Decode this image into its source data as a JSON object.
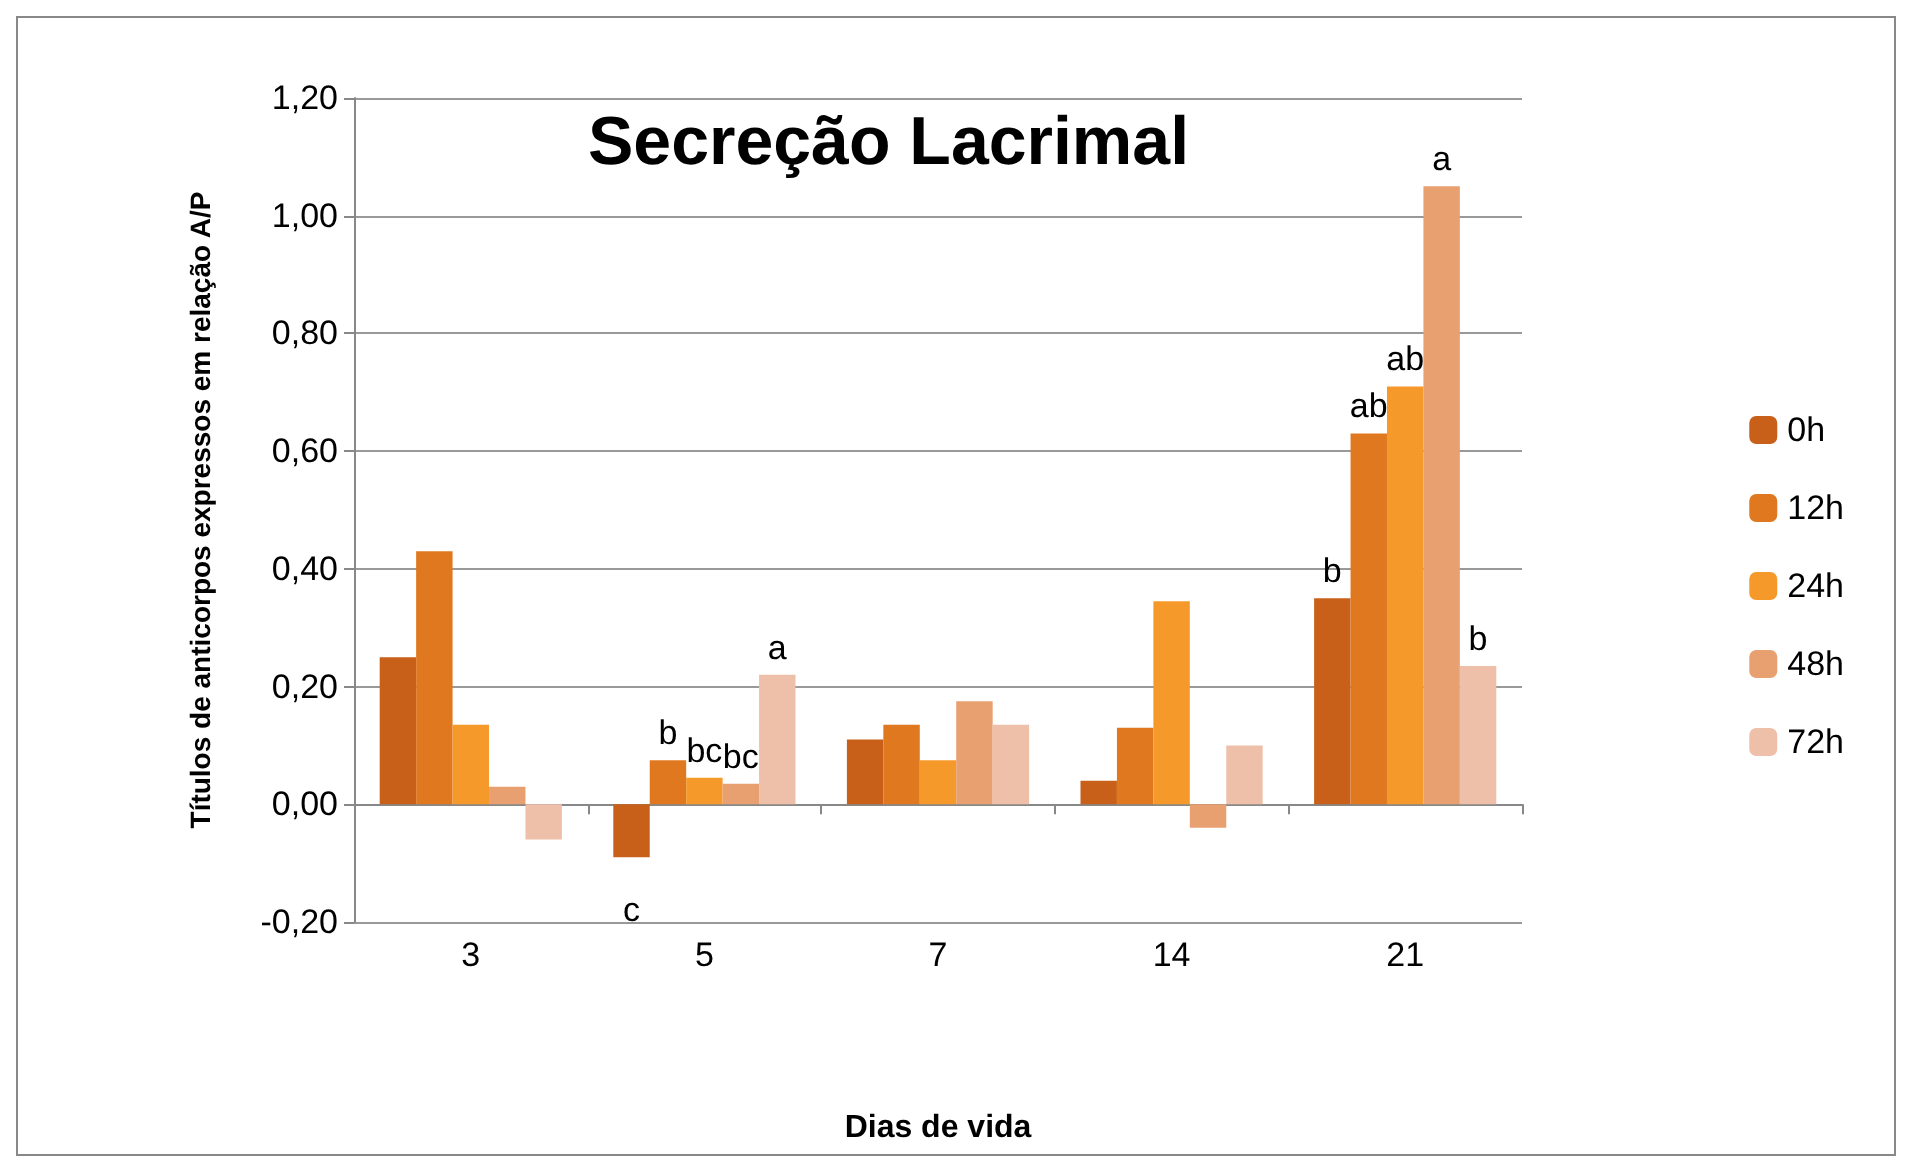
{
  "chart_data": {
    "type": "bar",
    "title": "Secreção Lacrimal",
    "xlabel": "Dias de vida",
    "ylabel": "Títulos de anticorpos expressos em relação A/P",
    "categories": [
      "3",
      "5",
      "7",
      "14",
      "21"
    ],
    "series": [
      {
        "name": "0h",
        "color": "#c8601a",
        "values": [
          0.25,
          -0.09,
          0.11,
          0.04,
          0.35
        ],
        "value_labels": [
          null,
          "c",
          null,
          null,
          "b"
        ]
      },
      {
        "name": "12h",
        "color": "#e07820",
        "values": [
          0.43,
          0.075,
          0.135,
          0.13,
          0.63
        ],
        "value_labels": [
          null,
          "b",
          null,
          null,
          "ab"
        ]
      },
      {
        "name": "24h",
        "color": "#f59a2a",
        "values": [
          0.135,
          0.045,
          0.075,
          0.345,
          0.71
        ],
        "value_labels": [
          null,
          "bc",
          null,
          null,
          "ab"
        ]
      },
      {
        "name": "48h",
        "color": "#e8a070",
        "values": [
          0.03,
          0.035,
          0.175,
          -0.04,
          1.05
        ],
        "value_labels": [
          null,
          "bc",
          null,
          null,
          "a"
        ]
      },
      {
        "name": "72h",
        "color": "#eec0aa",
        "values": [
          -0.06,
          0.22,
          0.135,
          0.1,
          0.235
        ],
        "value_labels": [
          null,
          "a",
          null,
          null,
          "b"
        ]
      }
    ],
    "ylim": [
      -0.2,
      1.2
    ],
    "yticks": [
      {
        "value": -0.2,
        "label": "-0,20"
      },
      {
        "value": 0,
        "label": "0,00"
      },
      {
        "value": 0.2,
        "label": "0,20"
      },
      {
        "value": 0.4,
        "label": "0,40"
      },
      {
        "value": 0.6,
        "label": "0,60"
      },
      {
        "value": 0.8,
        "label": "0,80"
      },
      {
        "value": 1.0,
        "label": "1,00"
      },
      {
        "value": 1.2,
        "label": "1,20"
      }
    ],
    "grid": "y",
    "legend": "right"
  }
}
